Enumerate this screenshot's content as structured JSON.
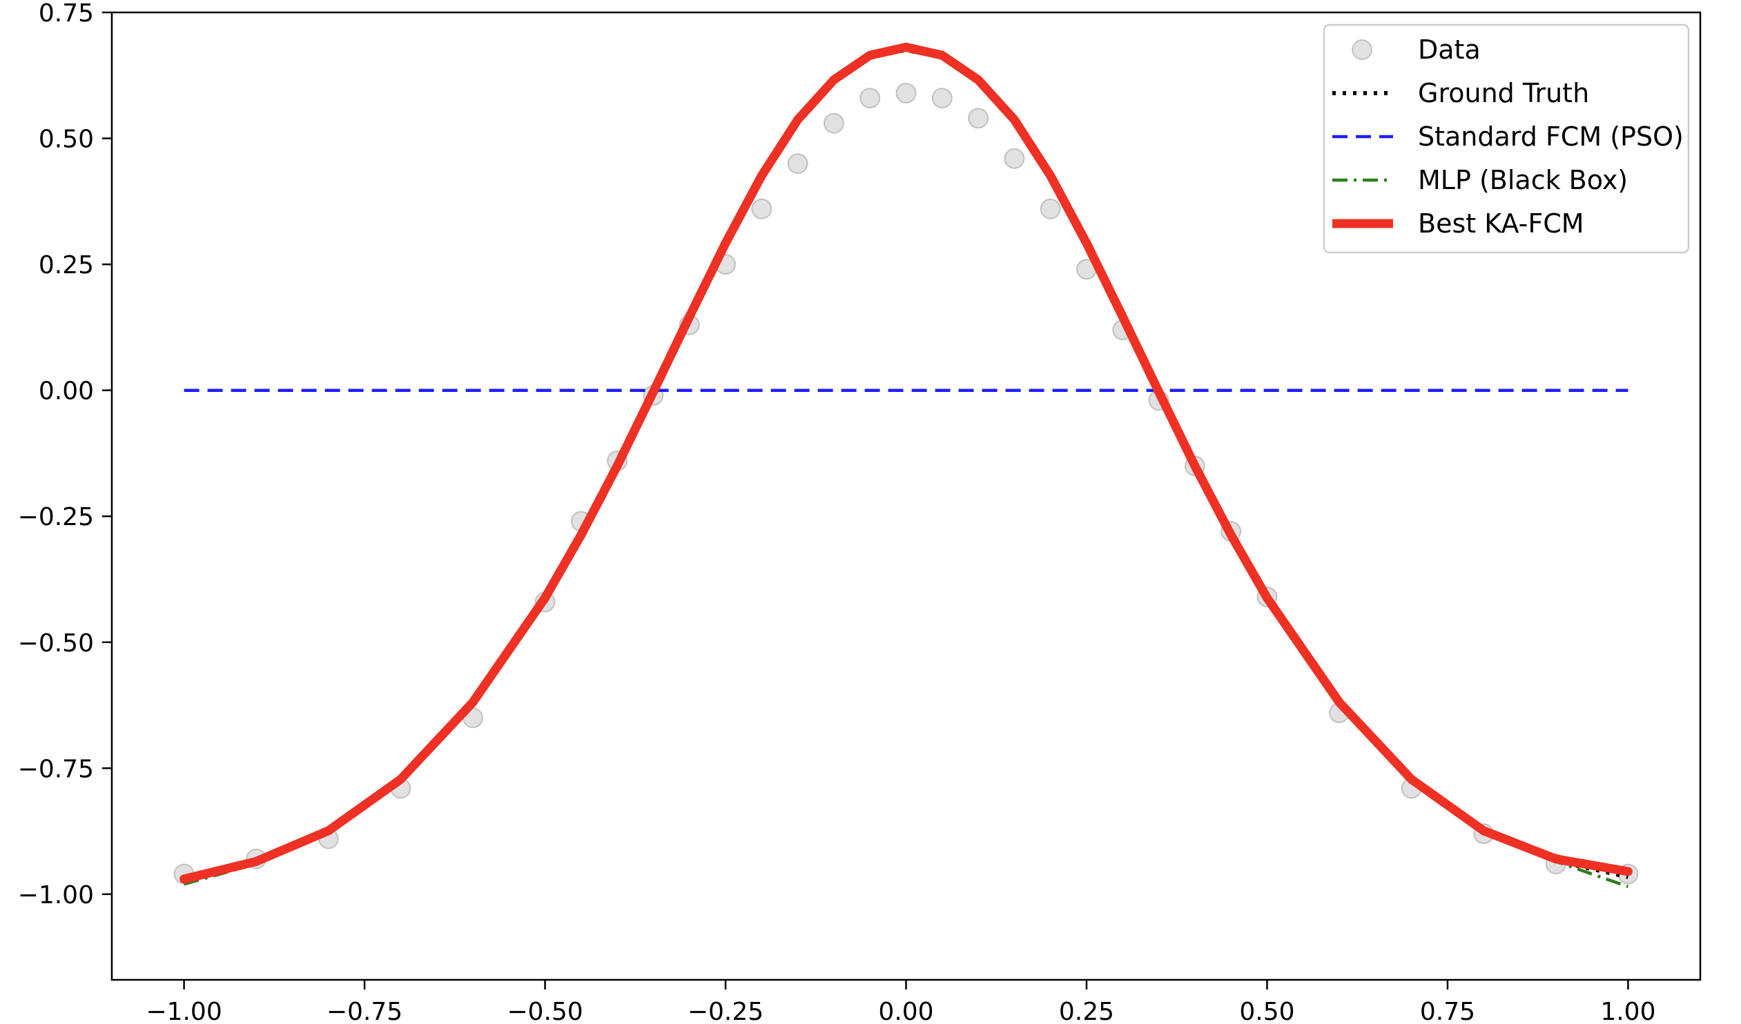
{
  "chart_data": {
    "type": "scatter",
    "title": "",
    "xlabel": "",
    "ylabel": "",
    "xlim": [
      -1.1,
      1.1
    ],
    "ylim": [
      -1.17,
      0.75
    ],
    "xticks": [
      -1.0,
      -0.75,
      -0.5,
      -0.25,
      0.0,
      0.25,
      0.5,
      0.75,
      1.0
    ],
    "xtick_labels": [
      "−1.00",
      "−0.75",
      "−0.50",
      "−0.25",
      "0.00",
      "0.25",
      "0.50",
      "0.75",
      "1.00"
    ],
    "yticks": [
      -1.0,
      -0.75,
      -0.5,
      -0.25,
      0.0,
      0.25,
      0.5,
      0.75
    ],
    "ytick_labels": [
      "−1.00",
      "−0.75",
      "−0.50",
      "−0.25",
      "0.00",
      "0.25",
      "0.50",
      "0.75"
    ],
    "grid": false,
    "legend_position": "top-right",
    "x": [
      -1.0,
      -0.9,
      -0.8,
      -0.7,
      -0.6,
      -0.5,
      -0.45,
      -0.4,
      -0.35,
      -0.3,
      -0.25,
      -0.2,
      -0.15,
      -0.1,
      -0.05,
      0.0,
      0.05,
      0.1,
      0.15,
      0.2,
      0.25,
      0.3,
      0.35,
      0.4,
      0.45,
      0.5,
      0.6,
      0.7,
      0.8,
      0.9,
      1.0
    ],
    "series": [
      {
        "name": "Data",
        "kind": "scatter",
        "color": "#aaaaaa",
        "values": [
          -0.96,
          -0.93,
          -0.89,
          -0.79,
          -0.65,
          -0.42,
          -0.26,
          -0.14,
          -0.01,
          0.13,
          0.25,
          0.36,
          0.45,
          0.53,
          0.58,
          0.59,
          0.58,
          0.54,
          0.46,
          0.36,
          0.24,
          0.12,
          -0.02,
          -0.15,
          -0.28,
          -0.41,
          -0.64,
          -0.79,
          -0.88,
          -0.94,
          -0.96
        ]
      },
      {
        "name": "Ground Truth",
        "kind": "line",
        "style": "dotted",
        "color": "#000000",
        "values": [
          -0.966,
          -0.934,
          -0.875,
          -0.774,
          -0.621,
          -0.414,
          -0.288,
          -0.151,
          -0.003,
          0.147,
          0.293,
          0.427,
          0.538,
          0.617,
          0.666,
          0.682,
          0.666,
          0.617,
          0.538,
          0.427,
          0.293,
          0.147,
          -0.003,
          -0.151,
          -0.288,
          -0.414,
          -0.621,
          -0.774,
          -0.875,
          -0.934,
          -0.966
        ]
      },
      {
        "name": "Standard FCM (PSO)",
        "kind": "line",
        "style": "dashed",
        "color": "#1f1fff",
        "values": [
          0.0,
          0.0,
          0.0,
          0.0,
          0.0,
          0.0,
          0.0,
          0.0,
          0.0,
          0.0,
          0.0,
          0.0,
          0.0,
          0.0,
          0.0,
          0.0,
          0.0,
          0.0,
          0.0,
          0.0,
          0.0,
          0.0,
          0.0,
          0.0,
          0.0,
          0.0,
          0.0,
          0.0,
          0.0,
          0.0,
          0.0
        ]
      },
      {
        "name": "MLP (Black Box)",
        "kind": "line",
        "style": "dashdot",
        "color": "#2e7d1f",
        "values": [
          -0.98,
          -0.94,
          -0.88,
          -0.775,
          -0.625,
          -0.416,
          -0.29,
          -0.152,
          -0.004,
          0.145,
          0.29,
          0.424,
          0.534,
          0.612,
          0.66,
          0.674,
          0.66,
          0.612,
          0.534,
          0.424,
          0.29,
          0.145,
          -0.004,
          -0.152,
          -0.29,
          -0.416,
          -0.625,
          -0.775,
          -0.875,
          -0.935,
          -0.985
        ]
      },
      {
        "name": "Best KA-FCM",
        "kind": "line",
        "style": "solid",
        "color": "#ee3124",
        "values": [
          -0.97,
          -0.935,
          -0.874,
          -0.772,
          -0.619,
          -0.412,
          -0.287,
          -0.15,
          -0.003,
          0.146,
          0.292,
          0.426,
          0.537,
          0.616,
          0.665,
          0.681,
          0.665,
          0.616,
          0.537,
          0.426,
          0.292,
          0.146,
          -0.003,
          -0.15,
          -0.287,
          -0.412,
          -0.619,
          -0.772,
          -0.874,
          -0.93,
          -0.955
        ]
      }
    ]
  },
  "colors": {
    "axis": "#000000",
    "scatter_fill": "#c8c8c8",
    "legend_border": "#cccccc"
  }
}
